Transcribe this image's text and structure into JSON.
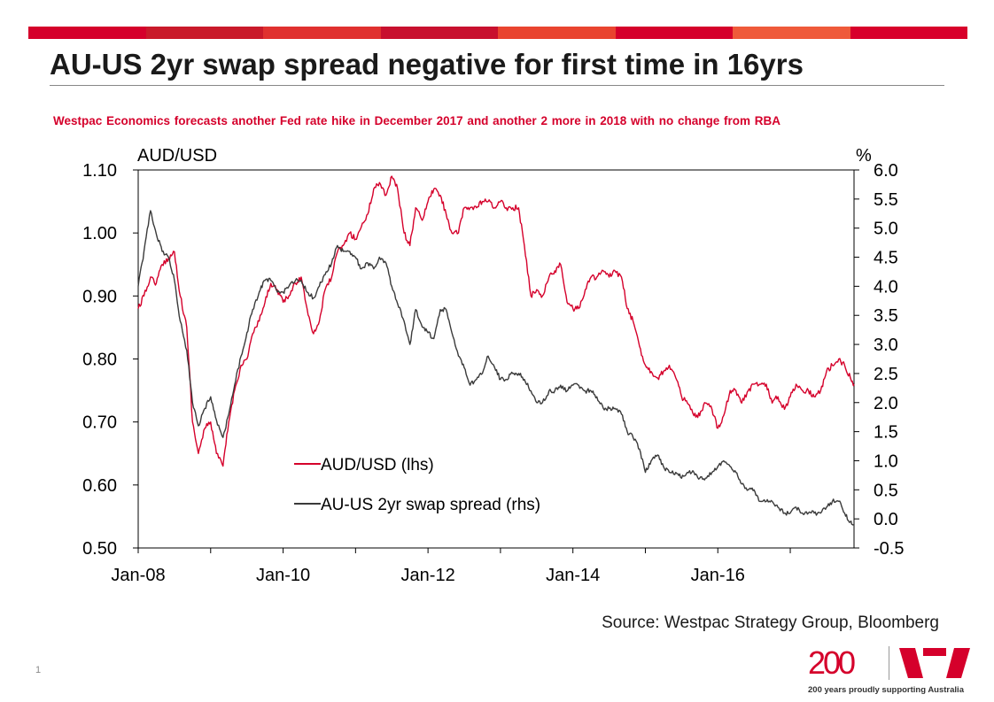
{
  "title": "AU-US 2yr swap spread negative for first time in 16yrs",
  "subtitle": "Westpac Economics forecasts another Fed rate hike in December 2017 and another 2 more in 2018  with no change from RBA",
  "source": "Source: Westpac Strategy Group, Bloomberg",
  "page_number": "1",
  "logo": {
    "number": "200",
    "tagline": "200 years proudly supporting Australia"
  },
  "colors": {
    "accent": "#d5002b",
    "spread_line": "#3a3a3a",
    "bar_segments": [
      "#d5002b",
      "#c91a2a",
      "#e0312f",
      "#c8102e",
      "#e9442f",
      "#d5002b",
      "#ef5a3a",
      "#d8002b"
    ]
  },
  "chart_data": {
    "type": "line",
    "left_axis_label": "AUD/USD",
    "right_axis_label": "%",
    "ylim_left": [
      0.5,
      1.1
    ],
    "ylim_right": [
      -0.5,
      6.0
    ],
    "left_ticks": [
      "1.10",
      "1.00",
      "0.90",
      "0.80",
      "0.70",
      "0.60",
      "0.50"
    ],
    "right_ticks": [
      "6.0",
      "5.5",
      "5.0",
      "4.5",
      "4.0",
      "3.5",
      "3.0",
      "2.5",
      "2.0",
      "1.5",
      "1.0",
      "0.5",
      "0.0",
      "-0.5"
    ],
    "x_ticks": [
      "Jan-08",
      "Jan-10",
      "Jan-12",
      "Jan-14",
      "Jan-16"
    ],
    "xlim_years": [
      2008.0,
      2017.88
    ],
    "series": [
      {
        "name": "AUD/USD (lhs)",
        "axis": "left",
        "color": "#d5002b",
        "x": [
          2008.0,
          2008.08,
          2008.17,
          2008.25,
          2008.33,
          2008.42,
          2008.5,
          2008.58,
          2008.67,
          2008.75,
          2008.83,
          2008.92,
          2009.0,
          2009.08,
          2009.17,
          2009.25,
          2009.33,
          2009.42,
          2009.5,
          2009.58,
          2009.67,
          2009.75,
          2009.83,
          2009.92,
          2010.0,
          2010.08,
          2010.17,
          2010.25,
          2010.33,
          2010.42,
          2010.5,
          2010.58,
          2010.67,
          2010.75,
          2010.83,
          2010.92,
          2011.0,
          2011.08,
          2011.17,
          2011.25,
          2011.33,
          2011.42,
          2011.5,
          2011.58,
          2011.67,
          2011.75,
          2011.83,
          2011.92,
          2012.0,
          2012.08,
          2012.17,
          2012.25,
          2012.33,
          2012.42,
          2012.5,
          2012.58,
          2012.67,
          2012.75,
          2012.83,
          2012.92,
          2013.0,
          2013.08,
          2013.17,
          2013.25,
          2013.33,
          2013.42,
          2013.5,
          2013.58,
          2013.67,
          2013.75,
          2013.83,
          2013.92,
          2014.0,
          2014.08,
          2014.17,
          2014.25,
          2014.33,
          2014.42,
          2014.5,
          2014.58,
          2014.67,
          2014.75,
          2014.83,
          2014.92,
          2015.0,
          2015.08,
          2015.17,
          2015.25,
          2015.33,
          2015.42,
          2015.5,
          2015.58,
          2015.67,
          2015.75,
          2015.83,
          2015.92,
          2016.0,
          2016.08,
          2016.17,
          2016.25,
          2016.33,
          2016.42,
          2016.5,
          2016.58,
          2016.67,
          2016.75,
          2016.83,
          2016.92,
          2017.0,
          2017.08,
          2017.17,
          2017.25,
          2017.33,
          2017.42,
          2017.5,
          2017.58,
          2017.67,
          2017.75,
          2017.83,
          2017.88
        ],
        "y": [
          0.88,
          0.9,
          0.93,
          0.92,
          0.95,
          0.96,
          0.97,
          0.9,
          0.85,
          0.7,
          0.65,
          0.69,
          0.7,
          0.65,
          0.63,
          0.7,
          0.75,
          0.79,
          0.8,
          0.84,
          0.86,
          0.89,
          0.92,
          0.91,
          0.89,
          0.9,
          0.92,
          0.93,
          0.88,
          0.84,
          0.86,
          0.91,
          0.93,
          0.97,
          0.98,
          1.0,
          0.99,
          1.01,
          1.03,
          1.07,
          1.08,
          1.06,
          1.09,
          1.07,
          1.0,
          0.98,
          1.04,
          1.02,
          1.05,
          1.07,
          1.06,
          1.03,
          1.0,
          1.0,
          1.04,
          1.04,
          1.04,
          1.05,
          1.05,
          1.04,
          1.05,
          1.04,
          1.04,
          1.04,
          0.98,
          0.9,
          0.91,
          0.9,
          0.93,
          0.94,
          0.95,
          0.89,
          0.88,
          0.88,
          0.91,
          0.93,
          0.93,
          0.94,
          0.93,
          0.94,
          0.93,
          0.88,
          0.86,
          0.82,
          0.79,
          0.78,
          0.77,
          0.78,
          0.79,
          0.77,
          0.74,
          0.73,
          0.71,
          0.71,
          0.73,
          0.72,
          0.69,
          0.71,
          0.75,
          0.75,
          0.73,
          0.75,
          0.76,
          0.76,
          0.76,
          0.73,
          0.74,
          0.72,
          0.74,
          0.76,
          0.75,
          0.75,
          0.74,
          0.75,
          0.78,
          0.79,
          0.8,
          0.79,
          0.77,
          0.76
        ]
      },
      {
        "name": "AU-US 2yr swap spread (rhs)",
        "axis": "right",
        "color": "#3a3a3a",
        "x": [
          2008.0,
          2008.08,
          2008.17,
          2008.25,
          2008.33,
          2008.42,
          2008.5,
          2008.58,
          2008.67,
          2008.75,
          2008.83,
          2008.92,
          2009.0,
          2009.08,
          2009.17,
          2009.25,
          2009.33,
          2009.42,
          2009.5,
          2009.58,
          2009.67,
          2009.75,
          2009.83,
          2009.92,
          2010.0,
          2010.08,
          2010.17,
          2010.25,
          2010.33,
          2010.42,
          2010.5,
          2010.58,
          2010.67,
          2010.75,
          2010.83,
          2010.92,
          2011.0,
          2011.08,
          2011.17,
          2011.25,
          2011.33,
          2011.42,
          2011.5,
          2011.58,
          2011.67,
          2011.75,
          2011.83,
          2011.92,
          2012.0,
          2012.08,
          2012.17,
          2012.25,
          2012.33,
          2012.42,
          2012.5,
          2012.58,
          2012.67,
          2012.75,
          2012.83,
          2012.92,
          2013.0,
          2013.08,
          2013.17,
          2013.25,
          2013.33,
          2013.42,
          2013.5,
          2013.58,
          2013.67,
          2013.75,
          2013.83,
          2013.92,
          2014.0,
          2014.08,
          2014.17,
          2014.25,
          2014.33,
          2014.42,
          2014.5,
          2014.58,
          2014.67,
          2014.75,
          2014.83,
          2014.92,
          2015.0,
          2015.08,
          2015.17,
          2015.25,
          2015.33,
          2015.42,
          2015.5,
          2015.58,
          2015.67,
          2015.75,
          2015.83,
          2015.92,
          2016.0,
          2016.08,
          2016.17,
          2016.25,
          2016.33,
          2016.42,
          2016.5,
          2016.58,
          2016.67,
          2016.75,
          2016.83,
          2016.92,
          2017.0,
          2017.08,
          2017.17,
          2017.25,
          2017.33,
          2017.42,
          2017.5,
          2017.58,
          2017.67,
          2017.75,
          2017.83,
          2017.88
        ],
        "y": [
          4.0,
          4.6,
          5.3,
          4.9,
          4.6,
          4.5,
          4.1,
          3.4,
          2.9,
          2.0,
          1.6,
          1.9,
          2.1,
          1.7,
          1.4,
          1.8,
          2.3,
          2.8,
          3.2,
          3.6,
          3.9,
          4.1,
          4.1,
          3.9,
          3.9,
          4.0,
          4.1,
          4.1,
          3.9,
          3.8,
          4.0,
          4.2,
          4.4,
          4.7,
          4.6,
          4.6,
          4.5,
          4.3,
          4.4,
          4.3,
          4.5,
          4.4,
          4.0,
          3.7,
          3.4,
          3.0,
          3.6,
          3.3,
          3.2,
          3.1,
          3.6,
          3.6,
          3.2,
          2.8,
          2.6,
          2.3,
          2.4,
          2.5,
          2.8,
          2.6,
          2.4,
          2.4,
          2.5,
          2.5,
          2.4,
          2.2,
          2.0,
          2.0,
          2.2,
          2.2,
          2.3,
          2.2,
          2.3,
          2.3,
          2.2,
          2.2,
          2.1,
          1.9,
          1.9,
          1.9,
          1.8,
          1.5,
          1.4,
          1.2,
          0.8,
          1.0,
          1.1,
          0.9,
          0.8,
          0.8,
          0.7,
          0.8,
          0.8,
          0.7,
          0.7,
          0.8,
          0.9,
          1.0,
          0.9,
          0.8,
          0.6,
          0.5,
          0.5,
          0.3,
          0.3,
          0.3,
          0.2,
          0.1,
          0.1,
          0.2,
          0.1,
          0.1,
          0.1,
          0.1,
          0.2,
          0.3,
          0.3,
          0.1,
          -0.05,
          -0.1
        ]
      }
    ]
  }
}
